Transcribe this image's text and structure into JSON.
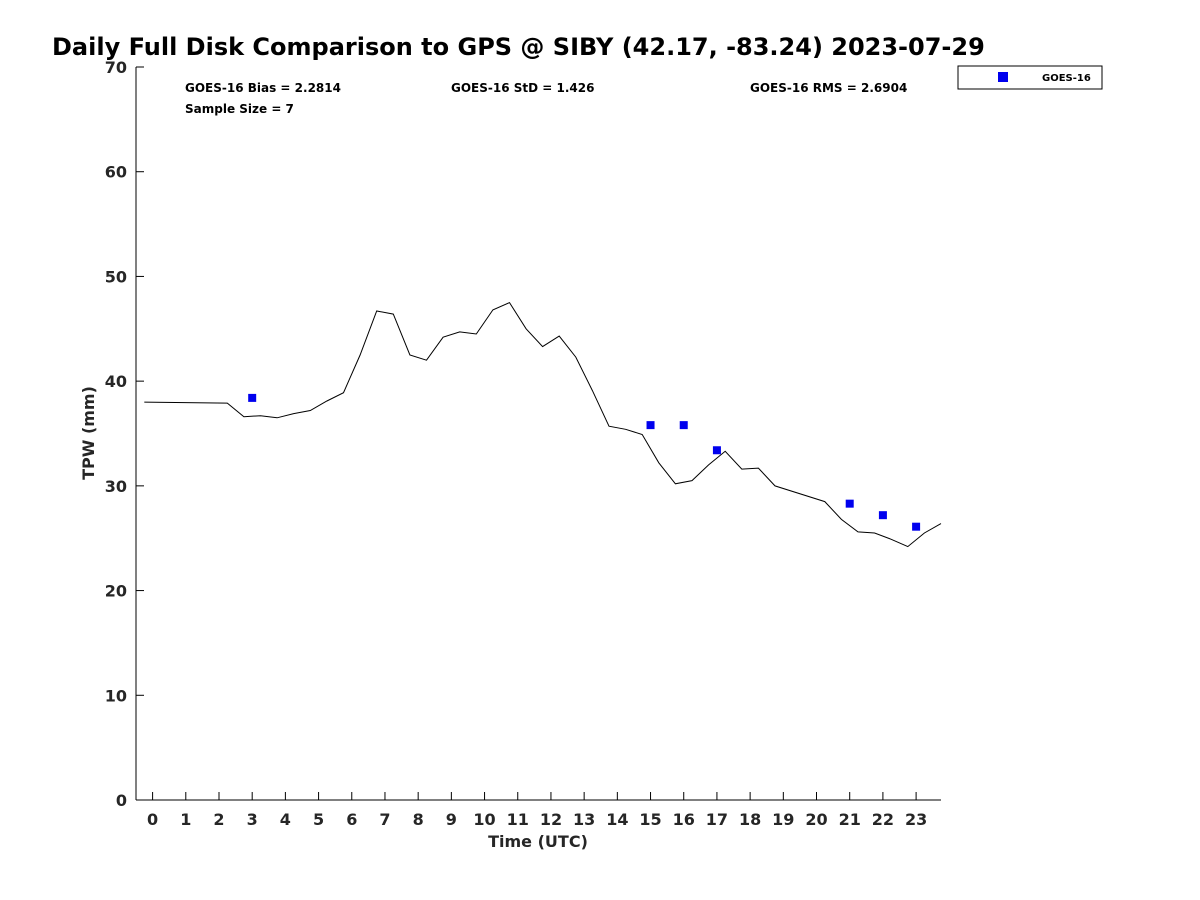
{
  "chart_data": {
    "type": "line",
    "title": "Daily Full Disk Comparison to GPS @ SIBY (42.17, -83.24) 2023-07-29",
    "xlabel": "Time (UTC)",
    "ylabel": "TPW (mm)",
    "xlim": [
      -0.5,
      23.75
    ],
    "ylim": [
      0,
      70
    ],
    "x_ticks": [
      0,
      1,
      2,
      3,
      4,
      5,
      6,
      7,
      8,
      9,
      10,
      11,
      12,
      13,
      14,
      15,
      16,
      17,
      18,
      19,
      20,
      21,
      22,
      23
    ],
    "x_tick_labels": [
      "0",
      "1",
      "2",
      "3",
      "4",
      "5",
      "6",
      "7",
      "8",
      "9",
      "10",
      "11",
      "12",
      "13",
      "14",
      "15",
      "16",
      "17",
      "18",
      "19",
      "20",
      "21",
      "22",
      "23"
    ],
    "y_ticks": [
      0,
      10,
      20,
      30,
      40,
      50,
      60,
      70
    ],
    "y_tick_labels": [
      "0",
      "10",
      "20",
      "30",
      "40",
      "50",
      "60",
      "70"
    ],
    "grid": false,
    "stats": {
      "bias": "GOES-16 Bias = 2.2814",
      "std": "GOES-16 StD = 1.426",
      "rms": "GOES-16 RMS = 2.6904",
      "sample_size": "Sample Size = 7"
    },
    "legend": {
      "position": "top-right",
      "entries": [
        {
          "label": "GOES-16",
          "color": "#0000ee",
          "marker": "square"
        }
      ]
    },
    "series": [
      {
        "kind": "line",
        "color": "#000000",
        "x": [
          -0.25,
          2.25,
          2.75,
          3.25,
          3.75,
          4.25,
          4.75,
          5.25,
          5.75,
          6.25,
          6.75,
          7.25,
          7.75,
          8.25,
          8.75,
          9.25,
          9.75,
          10.25,
          10.75,
          11.25,
          11.75,
          12.25,
          12.75,
          13.25,
          13.75,
          14.25,
          14.75,
          15.25,
          15.75,
          16.25,
          16.75,
          17.25,
          17.75,
          18.25,
          18.75,
          20.25,
          20.75,
          21.25,
          21.75,
          22.25,
          22.75,
          23.25,
          23.75
        ],
        "y": [
          38.0,
          37.9,
          36.6,
          36.7,
          36.5,
          36.9,
          37.2,
          38.1,
          38.9,
          42.5,
          46.7,
          46.4,
          42.5,
          42.0,
          44.2,
          44.7,
          44.5,
          46.8,
          47.5,
          45.0,
          43.3,
          44.3,
          42.3,
          39.1,
          35.7,
          35.4,
          34.9,
          32.2,
          30.2,
          30.5,
          32.0,
          33.3,
          31.6,
          31.7,
          30.0,
          28.5,
          26.8,
          25.6,
          25.5,
          24.9,
          24.2,
          25.5,
          26.4
        ]
      },
      {
        "kind": "scatter",
        "name": "GOES-16",
        "color": "#0000ee",
        "x": [
          3,
          15,
          16,
          17,
          21,
          22,
          23
        ],
        "y": [
          38.4,
          35.8,
          35.8,
          33.4,
          28.3,
          27.2,
          26.1
        ]
      }
    ]
  }
}
